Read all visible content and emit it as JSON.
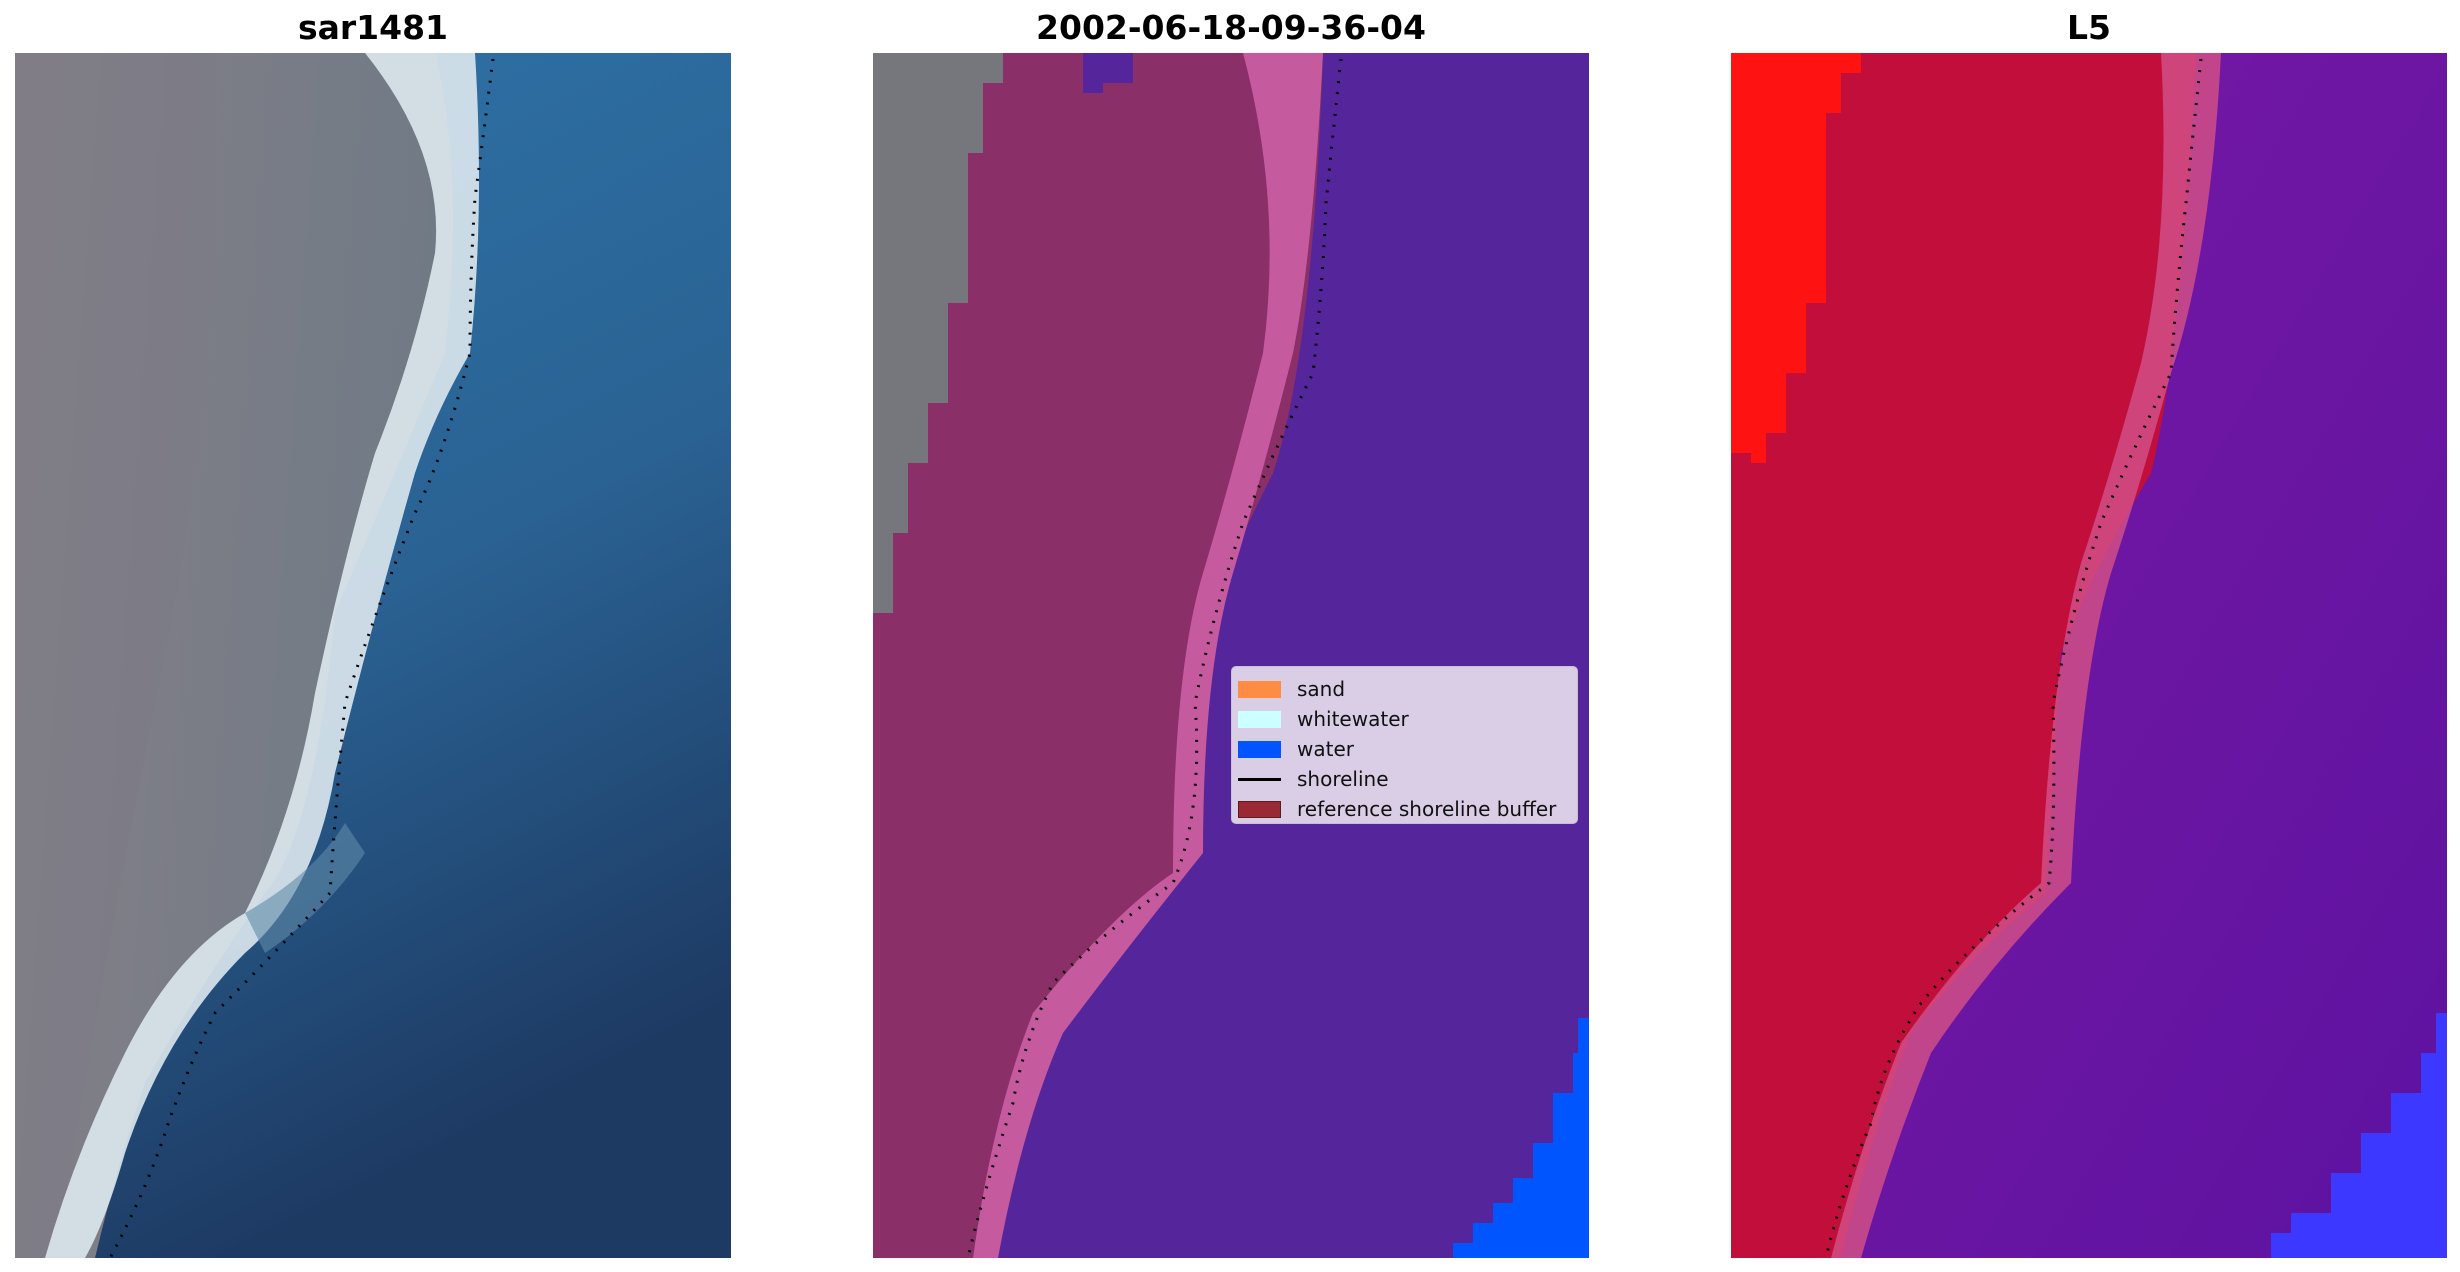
{
  "panels": [
    {
      "title": "sar1481"
    },
    {
      "title": "2002-06-18-09-36-04"
    },
    {
      "title": "L5"
    }
  ],
  "legend": {
    "items": [
      {
        "label": "sand",
        "color": "#ff8c42",
        "kind": "patch"
      },
      {
        "label": "whitewater",
        "color": "#ccffff",
        "kind": "patch"
      },
      {
        "label": "water",
        "color": "#0055ff",
        "kind": "patch"
      },
      {
        "label": "shoreline",
        "color": "#000000",
        "kind": "line"
      },
      {
        "label": "reference shoreline buffer",
        "color": "#992933",
        "kind": "patch"
      }
    ]
  },
  "colors": {
    "land_gray": "#7b7f88",
    "sea_blue": "#2a6ea3",
    "deep_sea": "#1f3d66",
    "whitewater_glow": "#e8f4f8",
    "buffer_maroon": "#8c2f63",
    "buffer_pink": "#c65a9e",
    "water_purple": "#55259b",
    "classified_water": "#0055ff",
    "index_red": "#ff1212",
    "index_crimson": "#c20e3a",
    "index_purple": "#6a15a3",
    "index_blue": "#3d38ff",
    "shoreline": "#000000"
  }
}
